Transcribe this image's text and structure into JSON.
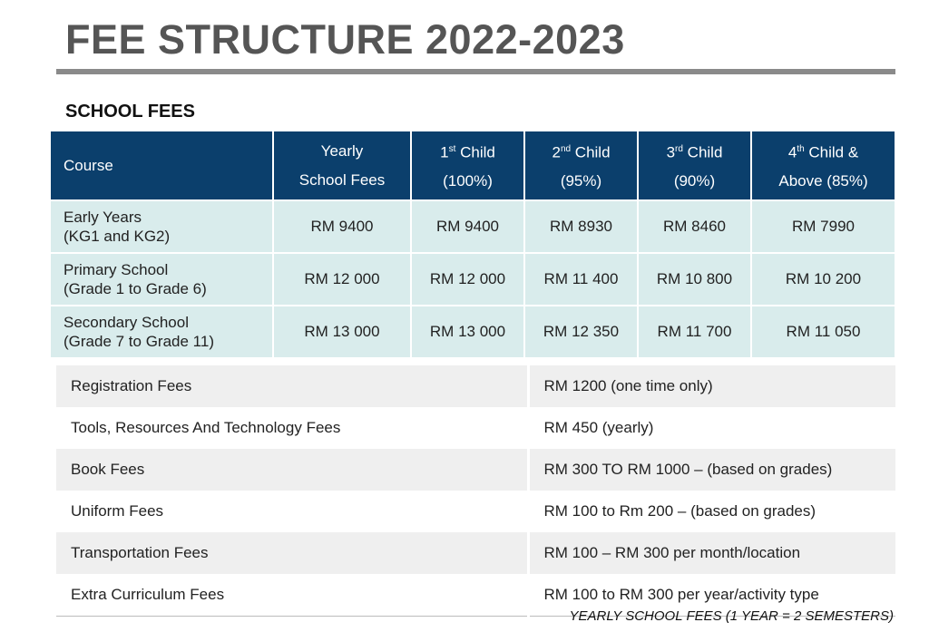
{
  "title": "FEE STRUCTURE 2022-2023",
  "section": "SCHOOL FEES",
  "headers": [
    {
      "l1": "Course"
    },
    {
      "l1": "Yearly",
      "l2": "School Fees"
    },
    {
      "n": "1",
      "sup": "st",
      "l1": " Child",
      "l2": "(100%)"
    },
    {
      "n": "2",
      "sup": "nd",
      "l1": " Child",
      "l2": "(95%)"
    },
    {
      "n": "3",
      "sup": "rd",
      "l1": " Child",
      "l2": "(90%)"
    },
    {
      "n": "4",
      "sup": "th",
      "l1": " Child &",
      "l2": "Above (85%)"
    }
  ],
  "rows": [
    {
      "c1": "Early Years",
      "c2": "(KG1 and KG2)",
      "v": [
        "RM 9400",
        "RM 9400",
        "RM 8930",
        "RM 8460",
        "RM 7990"
      ]
    },
    {
      "c1": "Primary School",
      "c2": "(Grade 1 to Grade 6)",
      "v": [
        "RM 12 000",
        "RM 12 000",
        "RM 11 400",
        "RM 10 800",
        "RM 10 200"
      ]
    },
    {
      "c1": "Secondary School",
      "c2": "(Grade 7 to Grade 11)",
      "v": [
        "RM 13 000",
        "RM 13 000",
        "RM 12 350",
        "RM 11 700",
        "RM 11 050"
      ]
    }
  ],
  "other": [
    {
      "k": "Registration Fees",
      "v": "RM 1200 (one time only)"
    },
    {
      "k": "Tools, Resources And Technology Fees",
      "v": "RM 450 (yearly)"
    },
    {
      "k": "Book Fees",
      "v": "RM 300 TO RM 1000 – (based on grades)"
    },
    {
      "k": "Uniform Fees",
      "v": "RM 100 to Rm 200 – (based on grades)"
    },
    {
      "k": "Transportation Fees",
      "v": "RM 100 – RM 300 per month/location"
    },
    {
      "k": "Extra Curriculum Fees",
      "v": "RM 100 to RM 300 per year/activity type"
    }
  ],
  "footnote": "YEARLY SCHOOL FEES (1 YEAR = 2 SEMESTERS)",
  "colors": {
    "header": "#0b3f6c",
    "row": "#d9ecec",
    "title": "#555555"
  }
}
